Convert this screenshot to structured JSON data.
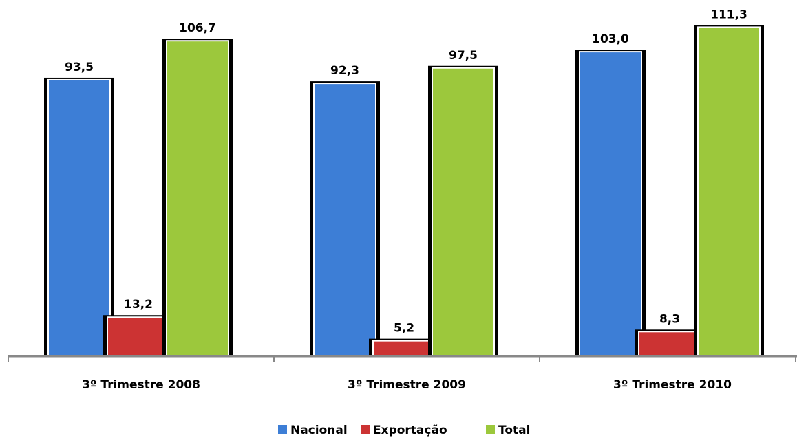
{
  "chart_data": {
    "type": "bar",
    "categories": [
      "3º Trimestre 2008",
      "3º Trimestre 2009",
      "3º Trimestre 2010"
    ],
    "series": [
      {
        "name": "Nacional",
        "color": "#3d7ed6",
        "values": [
          93.5,
          92.3,
          103.0
        ],
        "value_labels": [
          "93,5",
          "92,3",
          "103,0"
        ]
      },
      {
        "name": "Exportação",
        "color": "#cc3333",
        "values": [
          13.2,
          5.2,
          8.3
        ],
        "value_labels": [
          "13,2",
          "5,2",
          "8,3"
        ]
      },
      {
        "name": "Total",
        "color": "#9cc83c",
        "values": [
          106.7,
          97.5,
          111.3
        ],
        "value_labels": [
          "106,7",
          "97,5",
          "111,3"
        ]
      }
    ],
    "ylim": [
      0,
      120
    ],
    "legend": "bottom"
  }
}
